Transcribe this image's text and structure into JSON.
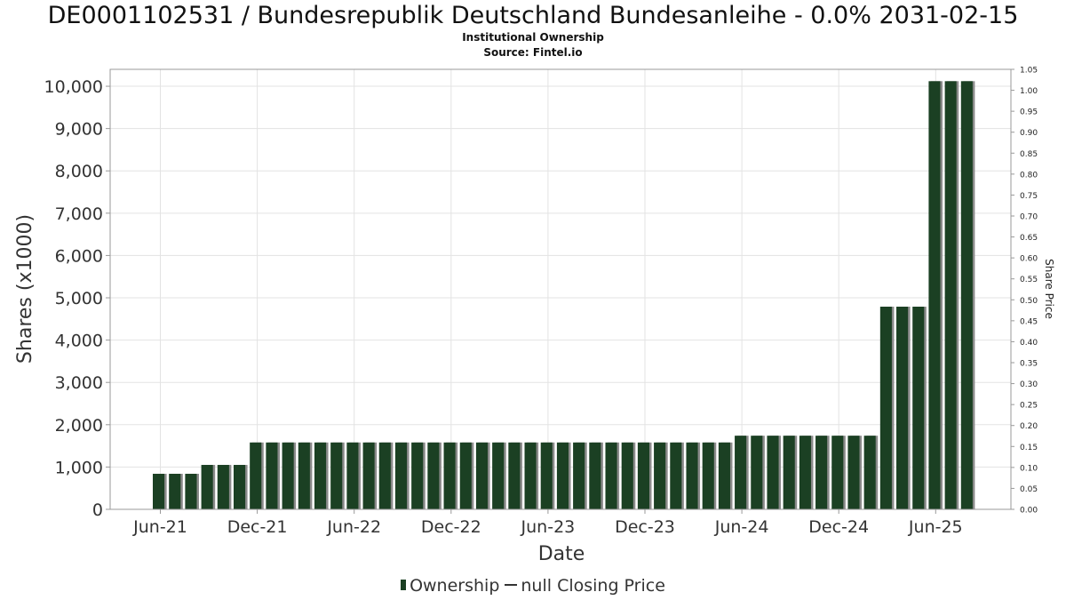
{
  "chart_data": {
    "type": "bar",
    "title": "DE0001102531 / Bundesrepublik Deutschland Bundesanleihe - 0.0% 2031-02-15",
    "subtitle_lines": [
      "Institutional Ownership",
      "Source: Fintel.io"
    ],
    "xlabel": "Date",
    "ylabel": "Shares (x1000)",
    "y2label": "Share Price",
    "x_tick_labels": [
      "Jun-21",
      "Dec-21",
      "Jun-22",
      "Dec-22",
      "Jun-23",
      "Dec-23",
      "Jun-24",
      "Dec-24",
      "Jun-25"
    ],
    "ylim": [
      0,
      10400
    ],
    "y_ticks": [
      0,
      1000,
      2000,
      3000,
      4000,
      5000,
      6000,
      7000,
      8000,
      9000,
      10000
    ],
    "y_tick_labels": [
      "0",
      "1,000",
      "2,000",
      "3,000",
      "4,000",
      "5,000",
      "6,000",
      "7,000",
      "8,000",
      "9,000",
      "10,000"
    ],
    "y2lim": [
      0,
      1.05
    ],
    "y2_ticks": [
      0,
      0.05,
      0.1,
      0.15,
      0.2,
      0.25,
      0.3,
      0.35,
      0.4,
      0.45,
      0.5,
      0.55,
      0.6,
      0.65,
      0.7,
      0.75,
      0.8,
      0.85,
      0.9,
      0.95,
      1.0,
      1.05
    ],
    "y2_tick_labels": [
      "0.00",
      "0.05",
      "0.10",
      "0.15",
      "0.20",
      "0.25",
      "0.30",
      "0.35",
      "0.40",
      "0.45",
      "0.50",
      "0.55",
      "0.60",
      "0.65",
      "0.70",
      "0.75",
      "0.80",
      "0.85",
      "0.90",
      "0.95",
      "1.00",
      "1.05"
    ],
    "grid": true,
    "legend_position": "bottom",
    "series": [
      {
        "name": "Ownership",
        "color": "#1b4023",
        "values": [
          840,
          840,
          840,
          1050,
          1050,
          1050,
          1580,
          1580,
          1580,
          1580,
          1580,
          1580,
          1580,
          1580,
          1580,
          1580,
          1580,
          1580,
          1580,
          1580,
          1580,
          1580,
          1580,
          1580,
          1580,
          1580,
          1580,
          1580,
          1580,
          1580,
          1580,
          1580,
          1580,
          1580,
          1580,
          1580,
          1740,
          1740,
          1740,
          1740,
          1740,
          1740,
          1740,
          1740,
          1740,
          4790,
          4790,
          4790,
          10120,
          10120,
          10120
        ]
      }
    ],
    "legend": {
      "ownership_label": "Ownership",
      "price_label": "null Closing Price"
    }
  }
}
